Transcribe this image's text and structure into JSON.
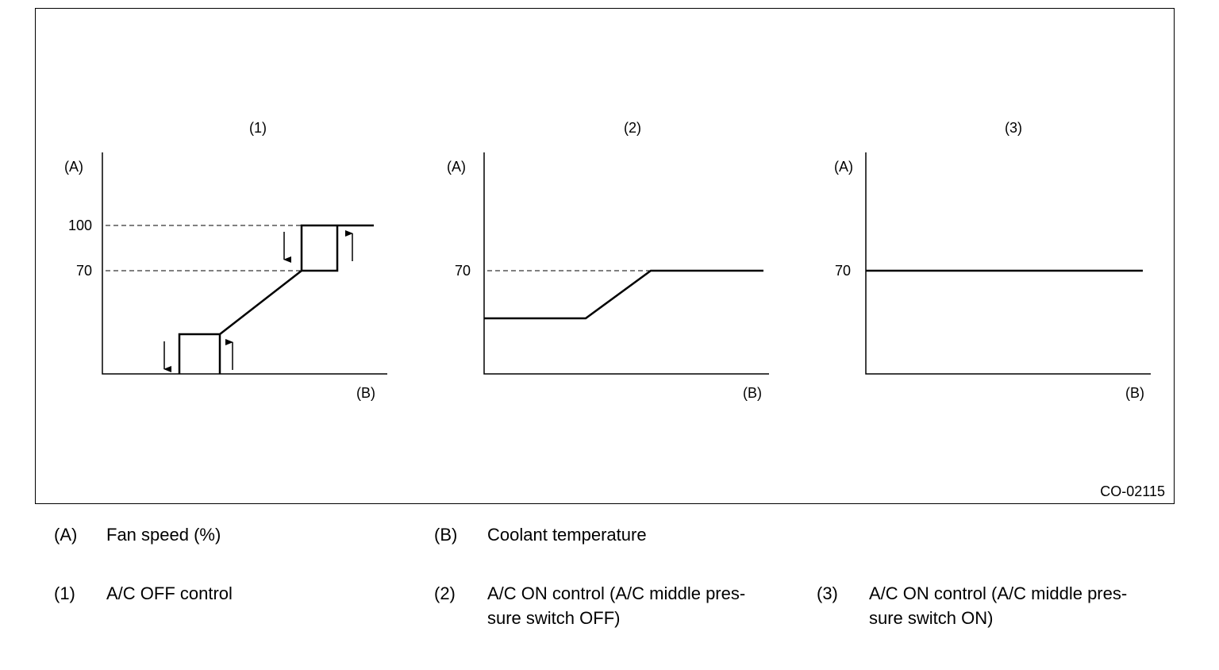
{
  "panels": [
    {
      "label": "(1)",
      "y_axis": "(A)",
      "x_axis": "(B)",
      "ticks": [
        "100",
        "70"
      ]
    },
    {
      "label": "(2)",
      "y_axis": "(A)",
      "x_axis": "(B)",
      "ticks": [
        "70"
      ]
    },
    {
      "label": "(3)",
      "y_axis": "(A)",
      "x_axis": "(B)",
      "ticks": [
        "70"
      ]
    }
  ],
  "figure_code": "CO-02115",
  "legend": [
    {
      "key": "(A)",
      "lines": [
        "Fan speed (%)"
      ]
    },
    {
      "key": "(B)",
      "lines": [
        "Coolant temperature"
      ]
    },
    {
      "key": "(1)",
      "lines": [
        "A/C OFF control"
      ]
    },
    {
      "key": "(2)",
      "lines": [
        "A/C ON control (A/C middle pres-",
        "sure switch OFF)"
      ]
    },
    {
      "key": "(3)",
      "lines": [
        "A/C ON control (A/C middle pres-",
        "sure switch ON)"
      ]
    }
  ]
}
